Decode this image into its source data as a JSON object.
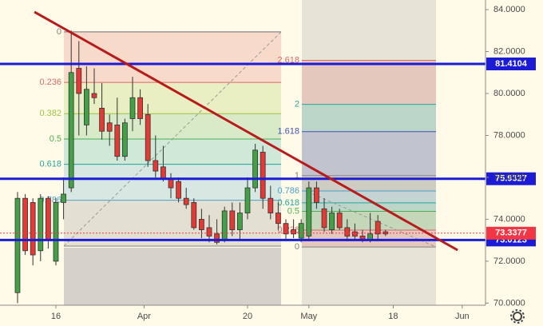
{
  "chart_data": {
    "type": "candlestick",
    "x": [
      0,
      1,
      2,
      3,
      4,
      5,
      6,
      7,
      8,
      9,
      10,
      11,
      12,
      13,
      14,
      15,
      16,
      17,
      18,
      19,
      20,
      21,
      22,
      23,
      24,
      25,
      26,
      27,
      28,
      29,
      30,
      31,
      32,
      33,
      34,
      35,
      36,
      37,
      38,
      39,
      40,
      41,
      42,
      43,
      44,
      45,
      46,
      47,
      48
    ],
    "open": [
      70.5,
      75,
      74.8,
      72.5,
      75,
      72,
      74.8,
      75.5,
      81.2,
      78.5,
      80,
      79.3,
      78.6,
      78.5,
      77,
      78.8,
      79.8,
      79,
      76.8,
      76.5,
      75.9,
      75.8,
      75,
      74.8,
      74,
      73.6,
      73.3,
      73,
      74.4,
      73.5,
      74.3,
      75.5,
      77.2,
      75,
      74.3,
      73.8,
      73.5,
      73.1,
      73.2,
      75.5,
      74.5,
      73.5,
      74.3,
      73.6,
      73.4,
      73.2,
      73,
      73.9,
      73.4
    ],
    "high": [
      75.3,
      75.2,
      75,
      75.2,
      75.1,
      75,
      76,
      83,
      82.5,
      81.3,
      81.2,
      80.5,
      79,
      79.8,
      78.8,
      80.8,
      80.2,
      79.5,
      78,
      77.5,
      76.2,
      76,
      75.5,
      75,
      74.5,
      74.2,
      74,
      74.6,
      74.8,
      74.8,
      76,
      77.6,
      77.5,
      75.6,
      74.8,
      74,
      74,
      74,
      75.8,
      75.8,
      75,
      74.6,
      74.5,
      74,
      73.8,
      73.5,
      74.3,
      74.2,
      73.5
    ],
    "low": [
      70,
      72.3,
      71.8,
      72,
      72.6,
      71.8,
      74,
      75.3,
      78,
      78,
      79.5,
      77.8,
      77.5,
      76.8,
      76.8,
      78.2,
      78.5,
      76.5,
      76,
      75.8,
      75,
      74.8,
      74.5,
      73.5,
      73.1,
      72.9,
      72.8,
      72.9,
      73.2,
      73,
      74,
      75.3,
      74.5,
      74,
      73.5,
      73,
      73.1,
      72.9,
      73,
      74.5,
      73.4,
      73.3,
      73.5,
      73,
      73,
      72.9,
      72.9,
      73,
      73.2
    ],
    "close": [
      75,
      72.5,
      72.3,
      75,
      73,
      74.8,
      75.2,
      81,
      80,
      80.2,
      79.8,
      78.2,
      78.2,
      77,
      78.6,
      79.8,
      78.8,
      76.8,
      76.3,
      75.9,
      75.5,
      75,
      74.7,
      73.6,
      73.5,
      73.2,
      72.9,
      74.4,
      73.5,
      74.3,
      75.5,
      77.3,
      75,
      74.3,
      73.8,
      73.3,
      73.3,
      73.8,
      75.5,
      74.8,
      73.6,
      74.3,
      73.6,
      73.2,
      73.2,
      73,
      73.3,
      73.3,
      73.3
    ],
    "up_color": "#43a047",
    "down_color": "#e53935",
    "xlim": [
      -2.29,
      61.04
    ],
    "ylim": [
      69.9,
      84.46
    ],
    "xticks": [
      {
        "value": 5,
        "label": "16"
      },
      {
        "value": 16.5,
        "label": "Apr"
      },
      {
        "value": 30,
        "label": "20"
      },
      {
        "value": 38,
        "label": "May"
      },
      {
        "value": 49,
        "label": "18"
      },
      {
        "value": 58,
        "label": "Jun"
      }
    ],
    "yticks": [
      {
        "value": 70,
        "label": "70.0000"
      },
      {
        "value": 72,
        "label": "72.0000"
      },
      {
        "value": 74,
        "label": "74.0000"
      },
      {
        "value": 76,
        "label": "76.0000"
      },
      {
        "value": 78,
        "label": "78.0000"
      },
      {
        "value": 80,
        "label": "80.0000"
      },
      {
        "value": 82,
        "label": "82.0000"
      },
      {
        "value": 84,
        "label": "84.0000"
      }
    ],
    "hlines": [
      {
        "value": 81.4104,
        "color": "#1c1cd6"
      },
      {
        "value": 75.9327,
        "color": "#1c1cd6"
      },
      {
        "value": 73.0123,
        "color": "#1c1cd6"
      }
    ],
    "last_price": {
      "value": 73.3377,
      "color": "#f23645"
    },
    "trendline": {
      "x": [
        2.2,
        57.4
      ],
      "y": [
        83.89,
        72.53
      ],
      "color": "#b71c1c"
    },
    "fib_retracement": {
      "high": 82.94,
      "low": 72.72,
      "levels": [
        0,
        0.236,
        0.382,
        0.5,
        0.618,
        0.786
      ],
      "colors": [
        "#808080",
        "#e06666",
        "#9bc53d",
        "#4caf50",
        "#26a69a",
        "#4a9fc9"
      ]
    },
    "fib_extension": {
      "base": 72.68,
      "top": 76.08,
      "levels": [
        0,
        0.236,
        0.5,
        0.618,
        0.786,
        1,
        1.618,
        2,
        2.618
      ],
      "colors": [
        "#808080",
        "#e06666",
        "#4caf50",
        "#26a69a",
        "#4a9fc9",
        "#808080",
        "#3f51b5",
        "#26a69a",
        "#e06666"
      ]
    }
  }
}
